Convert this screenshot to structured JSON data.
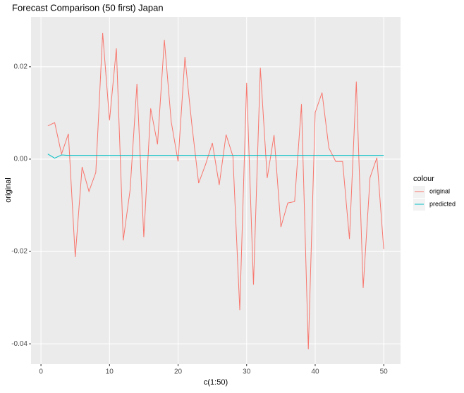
{
  "chart_data": {
    "type": "line",
    "title": "Forecast Comparison (50 first) Japan",
    "x_label": "c(1:50)",
    "y_label": "original",
    "legend_title": "colour",
    "legend_position": "right",
    "grid": true,
    "x": [
      1,
      2,
      3,
      4,
      5,
      6,
      7,
      8,
      9,
      10,
      11,
      12,
      13,
      14,
      15,
      16,
      17,
      18,
      19,
      20,
      21,
      22,
      23,
      24,
      25,
      26,
      27,
      28,
      29,
      30,
      31,
      32,
      33,
      34,
      35,
      36,
      37,
      38,
      39,
      40,
      41,
      42,
      43,
      44,
      45,
      46,
      47,
      48,
      49,
      50
    ],
    "series": [
      {
        "name": "original",
        "color": "#F8766D",
        "values": [
          0.0072,
          0.0079,
          0.0011,
          0.0055,
          -0.0212,
          -0.0017,
          -0.007,
          -0.0029,
          0.0273,
          0.0084,
          0.024,
          -0.0176,
          -0.0067,
          0.0163,
          -0.0169,
          0.011,
          0.0032,
          0.0258,
          0.0081,
          -0.0005,
          0.0221,
          0.0076,
          -0.0052,
          -0.0012,
          0.0035,
          -0.0056,
          0.0053,
          0.0006,
          -0.0327,
          0.0165,
          -0.0272,
          0.0198,
          -0.0041,
          0.0052,
          -0.0147,
          -0.0095,
          -0.0092,
          0.0119,
          -0.0412,
          0.0101,
          0.0144,
          0.0024,
          -0.0005,
          -0.0005,
          -0.0173,
          0.0168,
          -0.0279,
          -0.004,
          0.0003,
          -0.0195
        ]
      },
      {
        "name": "predicted",
        "color": "#00BFC4",
        "values": [
          0.0011,
          0.0002,
          0.0009,
          0.0008,
          0.0008,
          0.0008,
          0.0008,
          0.0008,
          0.0008,
          0.0008,
          0.0008,
          0.0008,
          0.0008,
          0.0008,
          0.0008,
          0.0008,
          0.0008,
          0.0008,
          0.0008,
          0.0008,
          0.0008,
          0.0008,
          0.0008,
          0.0008,
          0.0008,
          0.0008,
          0.0008,
          0.0008,
          0.0008,
          0.0008,
          0.0008,
          0.0008,
          0.0008,
          0.0008,
          0.0008,
          0.0008,
          0.0008,
          0.0008,
          0.0008,
          0.0008,
          0.0008,
          0.0008,
          0.0008,
          0.0008,
          0.0008,
          0.0008,
          0.0008,
          0.0008,
          0.0008,
          0.0008
        ]
      }
    ],
    "xlim": [
      -1.45,
      52.45
    ],
    "xticks": [
      0,
      10,
      20,
      30,
      40,
      50
    ],
    "ylim": [
      -0.0444,
      0.0308
    ],
    "yticks": [
      -0.04,
      -0.02,
      {
        "value": 0,
        "label": "0.00"
      },
      0.02
    ]
  }
}
